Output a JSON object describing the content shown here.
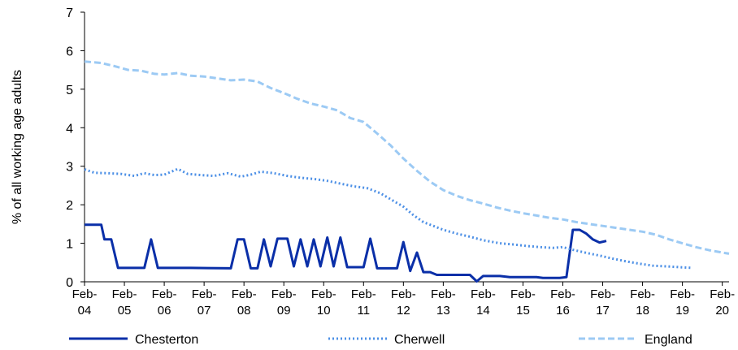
{
  "chart_data": {
    "type": "line",
    "title": "",
    "xlabel": "",
    "ylabel": "% of all working age adults",
    "ylim": [
      0,
      7
    ],
    "yticks": [
      "0",
      "1",
      "2",
      "3",
      "4",
      "5",
      "6",
      "7"
    ],
    "xlim": [
      2004.08,
      2020.25
    ],
    "xticks": [
      {
        "top": "Feb-",
        "bottom": "04",
        "x": 2004.08
      },
      {
        "top": "Feb-",
        "bottom": "05",
        "x": 2005.08
      },
      {
        "top": "Feb-",
        "bottom": "06",
        "x": 2006.08
      },
      {
        "top": "Feb-",
        "bottom": "07",
        "x": 2007.08
      },
      {
        "top": "Feb-",
        "bottom": "08",
        "x": 2008.08
      },
      {
        "top": "Feb-",
        "bottom": "09",
        "x": 2009.08
      },
      {
        "top": "Feb-",
        "bottom": "10",
        "x": 2010.08
      },
      {
        "top": "Feb-",
        "bottom": "11",
        "x": 2011.08
      },
      {
        "top": "Feb-",
        "bottom": "12",
        "x": 2012.08
      },
      {
        "top": "Feb-",
        "bottom": "13",
        "x": 2013.08
      },
      {
        "top": "Feb-",
        "bottom": "14",
        "x": 2014.08
      },
      {
        "top": "Feb-",
        "bottom": "15",
        "x": 2015.08
      },
      {
        "top": "Feb-",
        "bottom": "16",
        "x": 2016.08
      },
      {
        "top": "Feb-",
        "bottom": "17",
        "x": 2017.08
      },
      {
        "top": "Feb-",
        "bottom": "18",
        "x": 2018.08
      },
      {
        "top": "Feb-",
        "bottom": "19",
        "x": 2019.08
      },
      {
        "top": "Feb-",
        "bottom": "20",
        "x": 2020.08
      }
    ],
    "grid": false,
    "legend_position": "bottom",
    "series": [
      {
        "name": "Chesterton",
        "color": "#0a2fa8",
        "style": "solid",
        "points": [
          [
            2004.08,
            1.48
          ],
          [
            2004.5,
            1.48
          ],
          [
            2004.58,
            1.1
          ],
          [
            2004.75,
            1.1
          ],
          [
            2004.92,
            0.36
          ],
          [
            2005.58,
            0.36
          ],
          [
            2005.75,
            1.1
          ],
          [
            2005.92,
            0.36
          ],
          [
            2006.75,
            0.36
          ],
          [
            2007.75,
            0.35
          ],
          [
            2007.92,
            1.1
          ],
          [
            2008.08,
            1.1
          ],
          [
            2008.25,
            0.35
          ],
          [
            2008.42,
            0.35
          ],
          [
            2008.58,
            1.1
          ],
          [
            2008.75,
            0.4
          ],
          [
            2008.92,
            1.12
          ],
          [
            2009.17,
            1.12
          ],
          [
            2009.33,
            0.4
          ],
          [
            2009.5,
            1.1
          ],
          [
            2009.67,
            0.4
          ],
          [
            2009.83,
            1.1
          ],
          [
            2010.0,
            0.4
          ],
          [
            2010.17,
            1.15
          ],
          [
            2010.33,
            0.4
          ],
          [
            2010.5,
            1.15
          ],
          [
            2010.67,
            0.38
          ],
          [
            2011.08,
            0.38
          ],
          [
            2011.25,
            1.12
          ],
          [
            2011.42,
            0.35
          ],
          [
            2011.92,
            0.35
          ],
          [
            2012.08,
            1.03
          ],
          [
            2012.25,
            0.28
          ],
          [
            2012.42,
            0.76
          ],
          [
            2012.58,
            0.25
          ],
          [
            2012.75,
            0.25
          ],
          [
            2012.92,
            0.18
          ],
          [
            2013.75,
            0.18
          ],
          [
            2013.92,
            0.01
          ],
          [
            2014.08,
            0.15
          ],
          [
            2014.5,
            0.15
          ],
          [
            2014.75,
            0.12
          ],
          [
            2015.42,
            0.12
          ],
          [
            2015.58,
            0.1
          ],
          [
            2016.0,
            0.1
          ],
          [
            2016.17,
            0.12
          ],
          [
            2016.33,
            1.35
          ],
          [
            2016.5,
            1.35
          ],
          [
            2016.67,
            1.25
          ],
          [
            2016.83,
            1.1
          ],
          [
            2017.0,
            1.02
          ],
          [
            2017.17,
            1.06
          ]
        ]
      },
      {
        "name": "Cherwell",
        "color": "#4d90e6",
        "style": "dotted",
        "points": [
          [
            2004.08,
            2.92
          ],
          [
            2004.33,
            2.83
          ],
          [
            2004.67,
            2.82
          ],
          [
            2005.0,
            2.8
          ],
          [
            2005.33,
            2.75
          ],
          [
            2005.58,
            2.82
          ],
          [
            2005.83,
            2.77
          ],
          [
            2006.08,
            2.78
          ],
          [
            2006.42,
            2.93
          ],
          [
            2006.67,
            2.8
          ],
          [
            2007.0,
            2.77
          ],
          [
            2007.33,
            2.75
          ],
          [
            2007.67,
            2.82
          ],
          [
            2008.0,
            2.73
          ],
          [
            2008.25,
            2.78
          ],
          [
            2008.5,
            2.86
          ],
          [
            2008.83,
            2.82
          ],
          [
            2009.17,
            2.75
          ],
          [
            2009.5,
            2.7
          ],
          [
            2009.83,
            2.67
          ],
          [
            2010.17,
            2.62
          ],
          [
            2010.5,
            2.55
          ],
          [
            2010.83,
            2.48
          ],
          [
            2011.17,
            2.43
          ],
          [
            2011.5,
            2.3
          ],
          [
            2011.83,
            2.1
          ],
          [
            2012.08,
            1.95
          ],
          [
            2012.33,
            1.73
          ],
          [
            2012.58,
            1.55
          ],
          [
            2012.83,
            1.45
          ],
          [
            2013.08,
            1.35
          ],
          [
            2013.42,
            1.25
          ],
          [
            2013.75,
            1.17
          ],
          [
            2014.08,
            1.08
          ],
          [
            2014.5,
            1.0
          ],
          [
            2014.83,
            0.97
          ],
          [
            2015.17,
            0.93
          ],
          [
            2015.5,
            0.9
          ],
          [
            2015.83,
            0.88
          ],
          [
            2016.08,
            0.9
          ],
          [
            2016.33,
            0.83
          ],
          [
            2016.67,
            0.75
          ],
          [
            2017.0,
            0.68
          ],
          [
            2017.33,
            0.6
          ],
          [
            2017.67,
            0.53
          ],
          [
            2018.0,
            0.47
          ],
          [
            2018.33,
            0.42
          ],
          [
            2018.67,
            0.4
          ],
          [
            2019.0,
            0.38
          ],
          [
            2019.33,
            0.36
          ]
        ]
      },
      {
        "name": "England",
        "color": "#9ccaf4",
        "style": "dashed",
        "points": [
          [
            2004.08,
            5.72
          ],
          [
            2004.5,
            5.68
          ],
          [
            2004.83,
            5.6
          ],
          [
            2005.17,
            5.5
          ],
          [
            2005.5,
            5.48
          ],
          [
            2005.83,
            5.4
          ],
          [
            2006.08,
            5.38
          ],
          [
            2006.42,
            5.42
          ],
          [
            2006.75,
            5.35
          ],
          [
            2007.08,
            5.33
          ],
          [
            2007.42,
            5.28
          ],
          [
            2007.75,
            5.23
          ],
          [
            2008.08,
            5.25
          ],
          [
            2008.42,
            5.2
          ],
          [
            2008.75,
            5.03
          ],
          [
            2009.08,
            4.9
          ],
          [
            2009.42,
            4.75
          ],
          [
            2009.75,
            4.63
          ],
          [
            2010.08,
            4.55
          ],
          [
            2010.42,
            4.45
          ],
          [
            2010.75,
            4.25
          ],
          [
            2011.08,
            4.15
          ],
          [
            2011.42,
            3.85
          ],
          [
            2011.75,
            3.55
          ],
          [
            2012.08,
            3.2
          ],
          [
            2012.42,
            2.88
          ],
          [
            2012.75,
            2.6
          ],
          [
            2013.08,
            2.38
          ],
          [
            2013.42,
            2.23
          ],
          [
            2013.75,
            2.12
          ],
          [
            2014.08,
            2.03
          ],
          [
            2014.42,
            1.93
          ],
          [
            2014.75,
            1.85
          ],
          [
            2015.08,
            1.78
          ],
          [
            2015.42,
            1.72
          ],
          [
            2015.75,
            1.66
          ],
          [
            2016.08,
            1.62
          ],
          [
            2016.42,
            1.55
          ],
          [
            2016.75,
            1.5
          ],
          [
            2017.08,
            1.45
          ],
          [
            2017.42,
            1.4
          ],
          [
            2017.75,
            1.35
          ],
          [
            2018.08,
            1.3
          ],
          [
            2018.42,
            1.22
          ],
          [
            2018.75,
            1.1
          ],
          [
            2019.08,
            1.0
          ],
          [
            2019.42,
            0.9
          ],
          [
            2019.75,
            0.82
          ],
          [
            2020.08,
            0.76
          ],
          [
            2020.25,
            0.73
          ]
        ]
      }
    ]
  }
}
